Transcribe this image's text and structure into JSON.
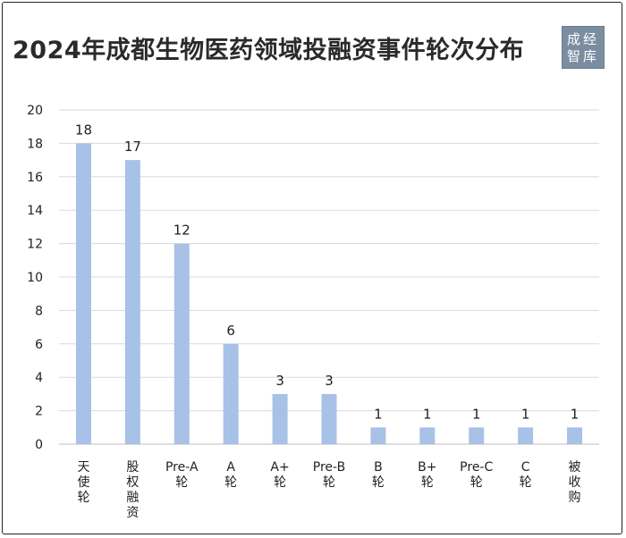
{
  "title": "2024年成都生物医药领域投融资事件轮次分布",
  "logo": {
    "line1": "成经",
    "line2": "智库"
  },
  "chart_data": {
    "type": "bar",
    "title": "2024年成都生物医药领域投融资事件轮次分布",
    "categories": [
      "天使轮",
      "股权融资",
      "Pre-A轮",
      "A轮",
      "A+轮",
      "Pre-B轮",
      "B轮",
      "B+轮",
      "Pre-C轮",
      "C轮",
      "被收购"
    ],
    "category_lines": [
      [
        "天",
        "使",
        "轮"
      ],
      [
        "股",
        "权",
        "融",
        "资"
      ],
      [
        "Pre-A",
        "轮"
      ],
      [
        "A",
        "轮"
      ],
      [
        "A+",
        "轮"
      ],
      [
        "Pre-B",
        "轮"
      ],
      [
        "B",
        "轮"
      ],
      [
        "B+",
        "轮"
      ],
      [
        "Pre-C",
        "轮"
      ],
      [
        "C",
        "轮"
      ],
      [
        "被",
        "收",
        "购"
      ]
    ],
    "values": [
      18,
      17,
      12,
      6,
      3,
      3,
      1,
      1,
      1,
      1,
      1
    ],
    "ylim": [
      0,
      20
    ],
    "yticks": [
      0,
      2,
      4,
      6,
      8,
      10,
      12,
      14,
      16,
      18,
      20
    ],
    "grid": true,
    "bar_color": "#a7c2e6",
    "xlabel": "",
    "ylabel": ""
  }
}
